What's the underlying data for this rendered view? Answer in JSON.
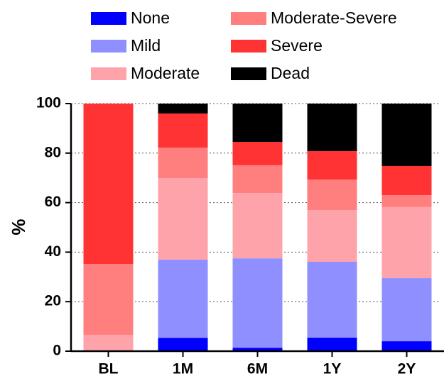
{
  "chart_data": {
    "type": "stacked-bar",
    "y_label": "%",
    "categories": [
      "BL",
      "1M",
      "6M",
      "1Y",
      "2Y"
    ],
    "series": [
      {
        "name": "None",
        "color": "#0000ff",
        "values": [
          0,
          5.4,
          1.4,
          5.5,
          4.0
        ]
      },
      {
        "name": "Mild",
        "color": "#8f8fff",
        "values": [
          0,
          31.6,
          36.1,
          30.6,
          25.5
        ]
      },
      {
        "name": "Moderate",
        "color": "#ffa3ab",
        "values": [
          6.6,
          32.9,
          26.4,
          20.9,
          28.7
        ]
      },
      {
        "name": "Moderate-Severe",
        "color": "#ff7f7f",
        "values": [
          28.6,
          12.3,
          11.2,
          12.3,
          4.8
        ]
      },
      {
        "name": "Severe",
        "color": "#ff3333",
        "values": [
          64.8,
          13.8,
          9.4,
          11.5,
          11.8
        ]
      },
      {
        "name": "Dead",
        "color": "#000000",
        "values": [
          0,
          4.0,
          15.5,
          19.2,
          25.2
        ]
      }
    ],
    "ylim": [
      0,
      100
    ],
    "yticks": [
      0,
      20,
      40,
      60,
      80,
      100
    ],
    "grid": true,
    "legend": "top"
  }
}
